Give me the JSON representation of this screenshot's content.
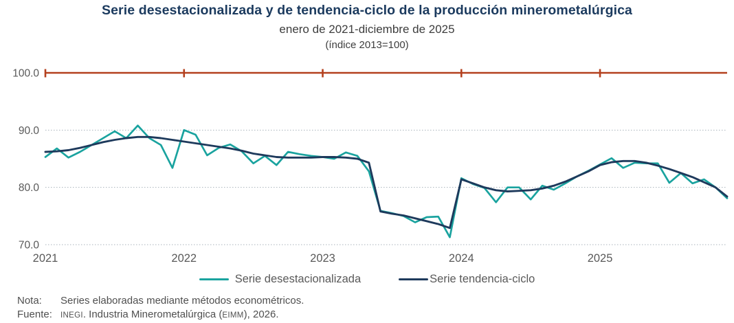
{
  "header": {
    "title": "Serie desestacionalizada y de tendencia-ciclo de la producción minerometalúrgica",
    "subtitle": "enero de 2021-diciembre de 2025",
    "unit_note": "(índice 2013=100)"
  },
  "chart_data": {
    "type": "line",
    "x_unit": "month",
    "x_range": "enero 2021 - diciembre 2025",
    "x_tick_labels": [
      "2021",
      "2022",
      "2023",
      "2024",
      "2025"
    ],
    "y_tick_labels": [
      "100.0",
      "90.0",
      "80.0",
      "70.0"
    ],
    "y_tick_values": [
      100,
      90,
      80,
      70
    ],
    "grid_values": [
      90,
      80,
      70
    ],
    "ref_line_value": 100,
    "ylim": [
      70,
      100
    ],
    "grid": "dotted-horizontal",
    "legend_position": "bottom",
    "series": [
      {
        "name": "Serie desestacionalizada",
        "color": "#1AA39F",
        "values": [
          85.3,
          86.8,
          85.2,
          86.2,
          87.4,
          88.6,
          89.8,
          88.6,
          90.8,
          88.6,
          87.4,
          83.4,
          90.0,
          89.2,
          85.6,
          86.9,
          87.5,
          86.3,
          84.2,
          85.5,
          83.9,
          86.2,
          85.8,
          85.5,
          85.3,
          85.0,
          86.1,
          85.5,
          82.8,
          75.9,
          75.5,
          75.0,
          73.9,
          74.8,
          74.9,
          71.3,
          81.6,
          80.6,
          79.9,
          77.4,
          80.0,
          80.0,
          77.9,
          80.3,
          79.6,
          80.7,
          81.9,
          82.9,
          84.0,
          85.1,
          83.4,
          84.3,
          84.2,
          84.2,
          80.8,
          82.5,
          80.7,
          81.4,
          80.0,
          78.1
        ]
      },
      {
        "name": "Serie tendencia-ciclo",
        "color": "#1E3A5C",
        "values": [
          86.2,
          86.3,
          86.5,
          86.9,
          87.4,
          87.9,
          88.3,
          88.6,
          88.8,
          88.8,
          88.6,
          88.3,
          88.0,
          87.7,
          87.4,
          87.1,
          86.8,
          86.4,
          85.9,
          85.6,
          85.3,
          85.2,
          85.2,
          85.2,
          85.3,
          85.3,
          85.2,
          85.0,
          84.3,
          75.8,
          75.4,
          75.1,
          74.6,
          74.1,
          73.6,
          72.9,
          81.4,
          80.7,
          80.0,
          79.5,
          79.3,
          79.4,
          79.5,
          79.8,
          80.3,
          81.0,
          81.9,
          82.8,
          83.9,
          84.4,
          84.6,
          84.6,
          84.3,
          83.8,
          83.2,
          82.5,
          81.8,
          80.9,
          80.0,
          78.4
        ]
      }
    ]
  },
  "legend": {
    "items": [
      {
        "label": "Serie desestacionalizada",
        "color": "#1AA39F"
      },
      {
        "label": "Serie tendencia-ciclo",
        "color": "#1E3A5C"
      }
    ]
  },
  "footer": {
    "nota_label": "Nota:",
    "nota_text": "Series elaboradas mediante métodos econométricos.",
    "fuente_label": "Fuente:",
    "fuente_org": "INEGI",
    "fuente_mid": ". Industria Minerometalúrgica (",
    "fuente_acronym": "EIMM",
    "fuente_end": "), 2026."
  },
  "colors": {
    "title": "#1B3A5E",
    "axis_text": "#595959",
    "ref_line": "#B4401E",
    "gridline": "#A8B2BB",
    "series_desestacionalizada": "#1AA39F",
    "series_tendencia_ciclo": "#1E3A5C"
  }
}
